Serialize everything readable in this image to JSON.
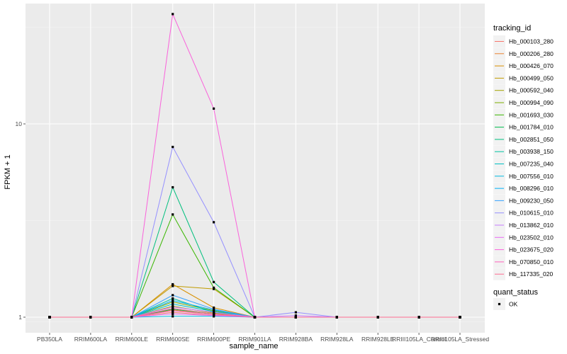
{
  "chart_data": {
    "type": "line",
    "title": "",
    "xlabel": "sample_name",
    "ylabel": "FPKM + 1",
    "y_scale": "log10",
    "ylim": [
      0.9,
      45
    ],
    "grid": true,
    "legend_position": "right",
    "categories": [
      "PB350LA",
      "RRIM600LA",
      "RRIM600LE",
      "RRIM600SE",
      "RRIM600PE",
      "RRIM901LA",
      "RRIM928BA",
      "RRIM928LA",
      "RRIM928LE",
      "RRIII105LA_Control",
      "RRIII105LA_Stressed"
    ],
    "y_ticks": [
      1,
      10
    ],
    "y_tick_labels": [
      "1",
      "10"
    ],
    "legend_title": "tracking_id",
    "series": [
      {
        "name": "Hb_000103_280",
        "color": "#F8766D",
        "values": [
          1,
          1,
          1,
          1.06,
          1.02,
          1,
          1,
          1,
          1,
          1,
          1
        ]
      },
      {
        "name": "Hb_000206_280",
        "color": "#EA8331",
        "values": [
          1,
          1,
          1,
          1.09,
          1.03,
          1,
          1,
          1,
          1,
          1,
          1
        ]
      },
      {
        "name": "Hb_000426_070",
        "color": "#D89000",
        "values": [
          1,
          1,
          1,
          1.48,
          1.12,
          1,
          1,
          1,
          1,
          1,
          1
        ]
      },
      {
        "name": "Hb_000499_050",
        "color": "#C09B00",
        "values": [
          1,
          1,
          1,
          1.45,
          1.4,
          1,
          1,
          1,
          1,
          1,
          1
        ]
      },
      {
        "name": "Hb_000592_040",
        "color": "#A3A500",
        "values": [
          1,
          1,
          1,
          1.14,
          1.05,
          1,
          1,
          1,
          1,
          1,
          1
        ]
      },
      {
        "name": "Hb_000994_090",
        "color": "#7CAE00",
        "values": [
          1,
          1,
          1,
          1.2,
          1.08,
          1,
          1,
          1,
          1,
          1,
          1
        ]
      },
      {
        "name": "Hb_001693_030",
        "color": "#39B600",
        "values": [
          1,
          1,
          1,
          3.4,
          1.42,
          1,
          1,
          1,
          1,
          1,
          1
        ]
      },
      {
        "name": "Hb_001784_010",
        "color": "#00BB4E",
        "values": [
          1,
          1,
          1,
          1.1,
          1.04,
          1,
          1,
          1,
          1,
          1,
          1
        ]
      },
      {
        "name": "Hb_002851_050",
        "color": "#00BF7D",
        "values": [
          1,
          1,
          1,
          4.7,
          1.52,
          1,
          1,
          1,
          1,
          1,
          1
        ]
      },
      {
        "name": "Hb_003938_150",
        "color": "#00C1A3",
        "values": [
          1,
          1,
          1,
          1.25,
          1.06,
          1,
          1,
          1,
          1,
          1,
          1
        ]
      },
      {
        "name": "Hb_007235_040",
        "color": "#00BFC4",
        "values": [
          1,
          1,
          1,
          1.17,
          1.07,
          1,
          1,
          1,
          1,
          1,
          1
        ]
      },
      {
        "name": "Hb_007556_010",
        "color": "#00BAE0",
        "values": [
          1,
          1,
          1,
          1.01,
          1.01,
          1,
          1,
          1,
          1,
          1,
          1
        ]
      },
      {
        "name": "Hb_008296_010",
        "color": "#00B0F6",
        "values": [
          1,
          1,
          1,
          1.22,
          1.09,
          1,
          1,
          1,
          1,
          1,
          1
        ]
      },
      {
        "name": "Hb_009230_050",
        "color": "#35A2FF",
        "values": [
          1,
          1,
          1,
          1.3,
          1.1,
          1,
          1,
          1,
          1,
          1,
          1
        ]
      },
      {
        "name": "Hb_010615_010",
        "color": "#9590FF",
        "values": [
          1,
          1,
          1,
          7.6,
          3.1,
          1,
          1.06,
          1,
          1,
          1,
          1
        ]
      },
      {
        "name": "Hb_013862_010",
        "color": "#C77CFF",
        "values": [
          1,
          1,
          1,
          1.13,
          1.06,
          1,
          1.02,
          1,
          1,
          1,
          1
        ]
      },
      {
        "name": "Hb_023502_010",
        "color": "#E76BF3",
        "values": [
          1,
          1,
          1,
          1.04,
          1.02,
          1,
          1,
          1,
          1,
          1,
          1
        ]
      },
      {
        "name": "Hb_023675_020",
        "color": "#FA62DB",
        "values": [
          1,
          1,
          1,
          37,
          12,
          1,
          1,
          1,
          1,
          1,
          1
        ]
      },
      {
        "name": "Hb_070850_010",
        "color": "#FF62BC",
        "values": [
          1,
          1,
          1,
          1.08,
          1.03,
          1,
          1,
          1,
          1,
          1,
          1
        ]
      },
      {
        "name": "Hb_117335_020",
        "color": "#FF6C91",
        "values": [
          1,
          1,
          1,
          1.11,
          1.04,
          1,
          1,
          1,
          1,
          1,
          1
        ]
      }
    ],
    "shape_legend": {
      "title": "quant_status",
      "items": [
        {
          "label": "OK",
          "shape": "square",
          "color": "#000000"
        }
      ]
    },
    "panel_background": "#EBEBEB"
  }
}
